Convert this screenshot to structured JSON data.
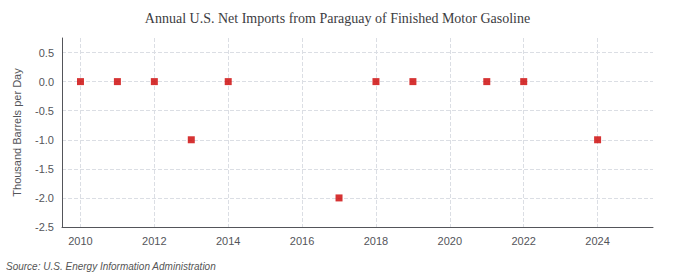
{
  "chart_data": {
    "type": "scatter",
    "title": "Annual U.S. Net Imports from Paraguay of Finished Motor Gasoline",
    "ylabel": "Thousand Barrels per Day",
    "annotation": "Source: U.S. Energy Information Administration",
    "x": [
      2010,
      2011,
      2012,
      2013,
      2014,
      2017,
      2018,
      2019,
      2021,
      2022,
      2024
    ],
    "values": [
      0,
      0,
      0,
      -1,
      0,
      -2,
      0,
      0,
      0,
      0,
      -1
    ],
    "color": "#cc0000",
    "marker": "square",
    "xlim": [
      2009.5,
      2025.5
    ],
    "ylim": [
      -2.5,
      0.75
    ],
    "xticks": [
      2010,
      2012,
      2014,
      2016,
      2018,
      2020,
      2022,
      2024
    ],
    "yticks": [
      0.5,
      {
        "value": 0,
        "label": "0.0"
      },
      -0.5,
      {
        "value": -1,
        "label": "-1.0"
      },
      -1.5,
      {
        "value": -2,
        "label": "-2.0"
      },
      -2.5
    ],
    "grid": true
  }
}
